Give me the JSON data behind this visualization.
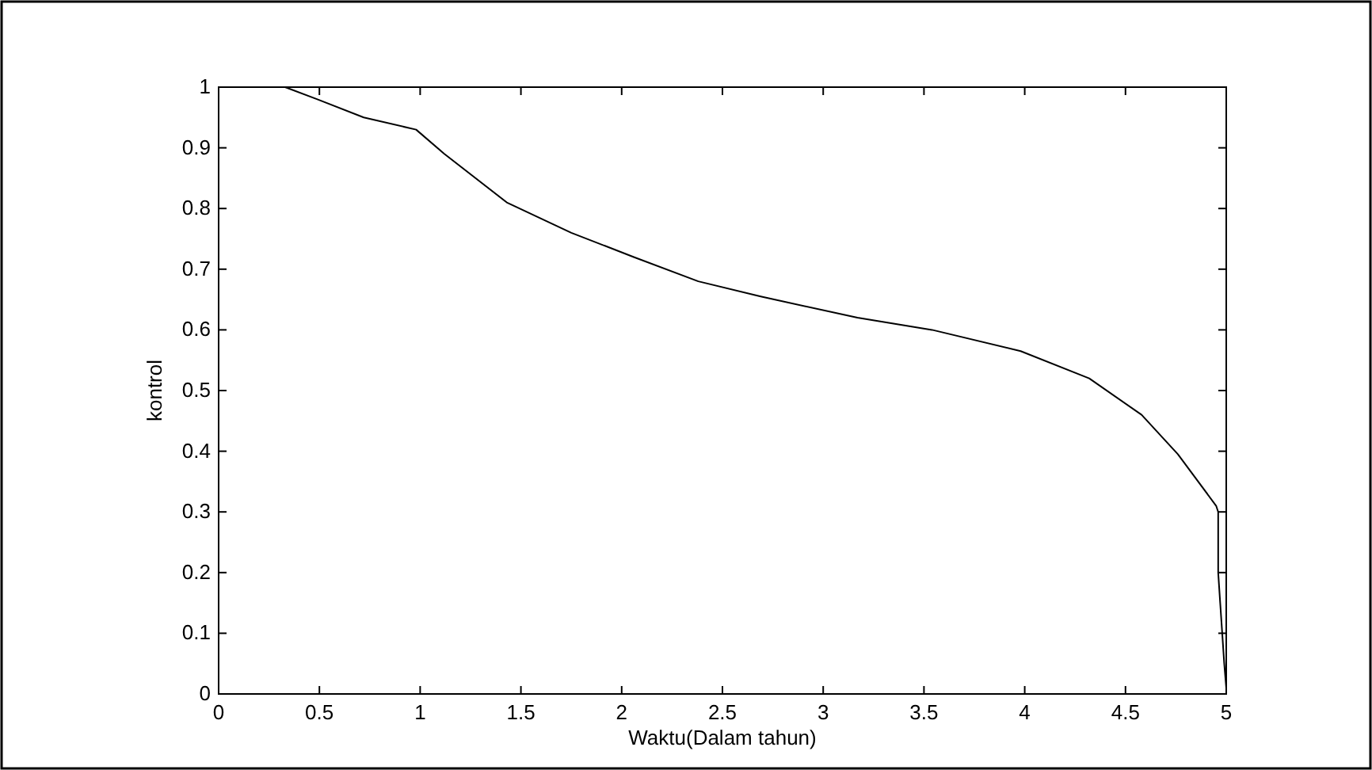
{
  "chart_data": {
    "type": "line",
    "xlabel": "Waktu(Dalam tahun)",
    "ylabel": "kontrol",
    "xlim": [
      0,
      5
    ],
    "ylim": [
      0,
      1
    ],
    "xticks": [
      0,
      0.5,
      1,
      1.5,
      2,
      2.5,
      3,
      3.5,
      4,
      4.5,
      5
    ],
    "yticks": [
      0,
      0.1,
      0.2,
      0.3,
      0.4,
      0.5,
      0.6,
      0.7,
      0.8,
      0.9,
      1
    ],
    "grid": false,
    "marker": "none",
    "line_style": "solid",
    "series": [
      {
        "color": "#000000",
        "x": [
          0.33,
          0.49,
          0.72,
          0.98,
          1.12,
          1.43,
          1.75,
          2.06,
          2.38,
          2.69,
          3.17,
          3.54,
          3.98,
          4.32,
          4.58,
          4.76,
          4.95,
          4.96,
          4.96,
          4.97,
          4.98,
          4.99,
          5
        ],
        "values": [
          1,
          0.98,
          0.95,
          0.93,
          0.89,
          0.81,
          0.76,
          0.72,
          0.68,
          0.655,
          0.62,
          0.6,
          0.565,
          0.52,
          0.46,
          0.395,
          0.31,
          0.3,
          0.2,
          0.15,
          0.1,
          0.05,
          0.01
        ]
      }
    ]
  }
}
